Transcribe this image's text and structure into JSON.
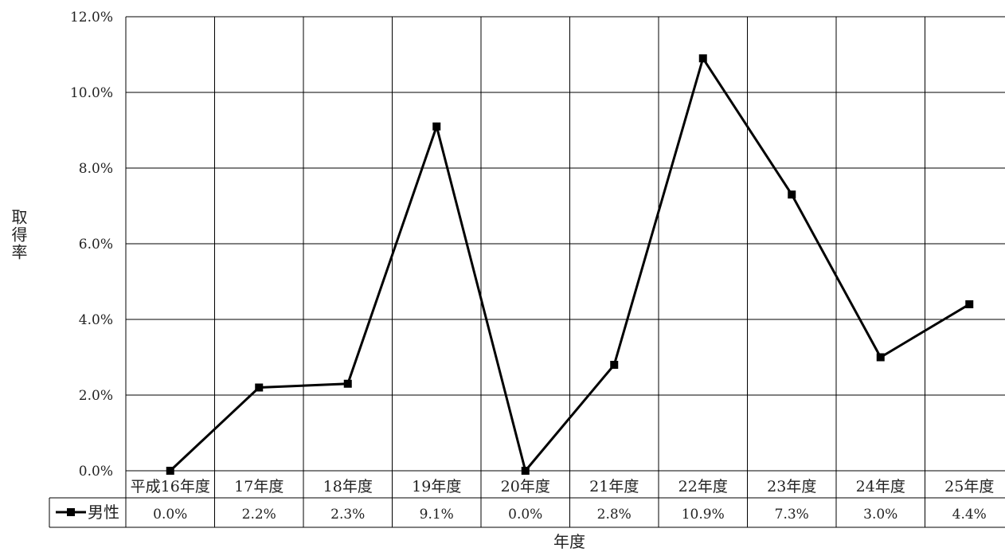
{
  "chart_data": {
    "type": "line",
    "categories": [
      "平成16年度",
      "17年度",
      "18年度",
      "19年度",
      "20年度",
      "21年度",
      "22年度",
      "23年度",
      "24年度",
      "25年度"
    ],
    "series": [
      {
        "name": "男性",
        "values": [
          0.0,
          2.2,
          2.3,
          9.1,
          0.0,
          2.8,
          10.9,
          7.3,
          3.0,
          4.4
        ],
        "color": "#000000"
      }
    ],
    "table_values": [
      "0.0%",
      "2.2%",
      "2.3%",
      "9.1%",
      "0.0%",
      "2.8%",
      "10.9%",
      "7.3%",
      "3.0%",
      "4.4%"
    ],
    "yticks": [
      "0.0%",
      "2.0%",
      "4.0%",
      "6.0%",
      "8.0%",
      "10.0%",
      "12.0%"
    ],
    "ylim": [
      0,
      12
    ],
    "ylabel": "取得率",
    "xlabel": "年度",
    "grid": true,
    "legend": "data-table"
  }
}
